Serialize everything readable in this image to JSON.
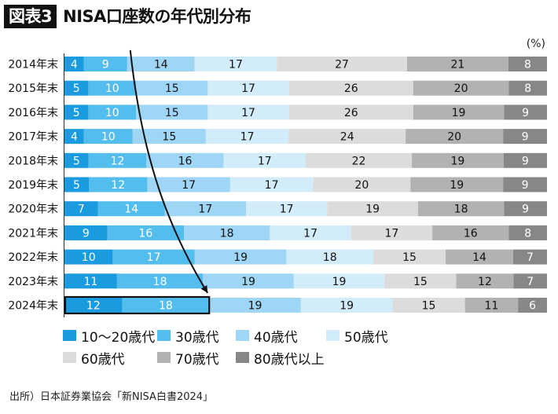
{
  "header": {
    "badge": "図表3",
    "title": "NISA口座数の年代別分布",
    "unit": "(%)"
  },
  "source": "出所）日本証券業協会「新NISA白書2024」",
  "chart_data": {
    "type": "bar",
    "orientation": "horizontal",
    "stacked": true,
    "title": "NISA口座数の年代別分布",
    "unit": "%",
    "xlim": [
      0,
      100
    ],
    "categories": [
      "2014年末",
      "2015年末",
      "2016年末",
      "2017年末",
      "2018年末",
      "2019年末",
      "2020年末",
      "2021年末",
      "2022年末",
      "2023年末",
      "2024年末"
    ],
    "series": [
      {
        "name": "10〜20歳代",
        "color": "#1a9be0",
        "label_color": "#ffffff",
        "values": [
          4,
          5,
          5,
          4,
          5,
          5,
          7,
          9,
          10,
          11,
          12
        ]
      },
      {
        "name": "30歳代",
        "color": "#53bdee",
        "label_color": "#ffffff",
        "values": [
          9,
          10,
          10,
          10,
          12,
          12,
          14,
          16,
          17,
          18,
          18
        ]
      },
      {
        "name": "40歳代",
        "color": "#9fd6f5",
        "label_color": "#111111",
        "values": [
          14,
          15,
          15,
          15,
          16,
          17,
          17,
          18,
          19,
          19,
          19
        ]
      },
      {
        "name": "50歳代",
        "color": "#d3ecfa",
        "label_color": "#111111",
        "values": [
          17,
          17,
          17,
          17,
          17,
          17,
          17,
          17,
          18,
          19,
          19
        ]
      },
      {
        "name": "60歳代",
        "color": "#dcdcdc",
        "label_color": "#111111",
        "values": [
          27,
          26,
          26,
          24,
          22,
          20,
          19,
          17,
          15,
          15,
          15
        ]
      },
      {
        "name": "70歳代",
        "color": "#b2b2b2",
        "label_color": "#111111",
        "values": [
          21,
          20,
          19,
          20,
          19,
          19,
          18,
          16,
          14,
          12,
          11
        ]
      },
      {
        "name": "80歳代以上",
        "color": "#878787",
        "label_color": "#ffffff",
        "values": [
          8,
          8,
          9,
          9,
          9,
          9,
          9,
          8,
          7,
          7,
          6
        ]
      }
    ],
    "annotations": [
      {
        "type": "highlight-box",
        "category": "2024年末",
        "series": [
          "10〜20歳代",
          "30歳代"
        ]
      },
      {
        "type": "arrow",
        "from_category": "2014年末",
        "to_category": "2024年末",
        "note": "curved arrow tracing growth of under-40 share"
      }
    ],
    "legend": {
      "position": "bottom",
      "rows": [
        [
          "10〜20歳代",
          "30歳代",
          "40歳代",
          "50歳代"
        ],
        [
          "60歳代",
          "70歳代",
          "80歳代以上"
        ]
      ]
    }
  }
}
